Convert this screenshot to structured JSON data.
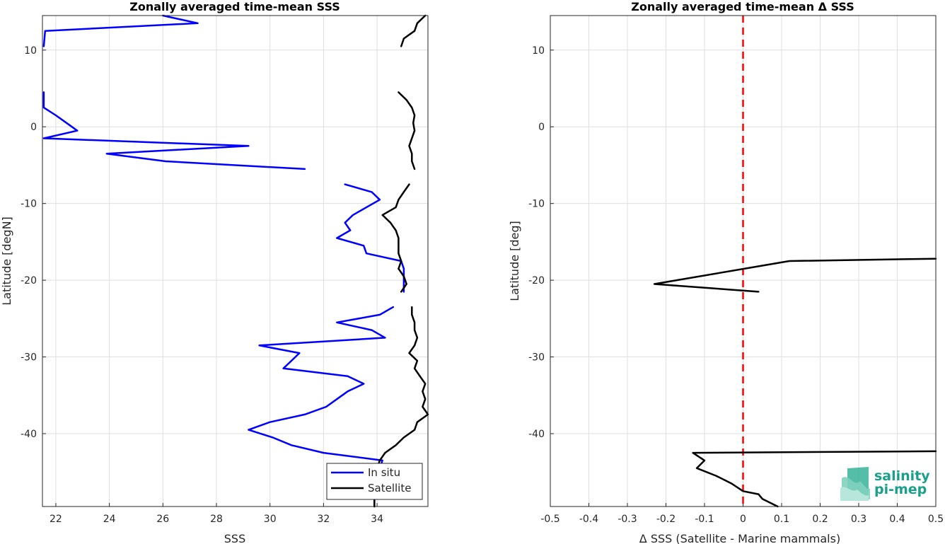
{
  "chart_data": [
    {
      "type": "line",
      "title": "Zonally averaged time-mean SSS",
      "xlabel": "SSS",
      "ylabel": "Latitude [degN]",
      "xlim": [
        21.5,
        35.9
      ],
      "ylim": [
        -49.5,
        14.5
      ],
      "xticks": [
        22,
        24,
        26,
        28,
        30,
        32,
        34
      ],
      "yticks": [
        10,
        0,
        -10,
        -20,
        -30,
        -40
      ],
      "grid": true,
      "legend_position": "bottom-right",
      "series": [
        {
          "name": "In situ",
          "color": "#0000ff",
          "segments": [
            [
              [
                26.0,
                14.5
              ],
              [
                27.3,
                13.5
              ],
              [
                21.6,
                12.5
              ],
              [
                21.55,
                10.5
              ]
            ],
            [
              [
                21.55,
                4.5
              ],
              [
                21.55,
                2.5
              ],
              [
                22.0,
                1.5
              ],
              [
                22.4,
                0.5
              ],
              [
                22.8,
                -0.5
              ],
              [
                21.55,
                -1.5
              ],
              [
                29.2,
                -2.5
              ],
              [
                23.9,
                -3.5
              ],
              [
                26.1,
                -4.5
              ],
              [
                31.3,
                -5.5
              ]
            ],
            [
              [
                32.8,
                -7.5
              ],
              [
                33.8,
                -8.5
              ],
              [
                34.1,
                -9.5
              ],
              [
                33.6,
                -10.5
              ],
              [
                33.1,
                -11.5
              ],
              [
                32.8,
                -12.5
              ],
              [
                33.0,
                -13.5
              ],
              [
                32.5,
                -14.5
              ],
              [
                33.5,
                -15.5
              ],
              [
                33.6,
                -16.5
              ],
              [
                34.9,
                -17.5
              ],
              [
                35.0,
                -18.5
              ],
              [
                35.0,
                -19.5
              ],
              [
                35.0,
                -20.5
              ],
              [
                35.0,
                -21.5
              ]
            ],
            [
              [
                34.6,
                -23.5
              ],
              [
                34.1,
                -24.5
              ],
              [
                32.5,
                -25.5
              ],
              [
                33.8,
                -26.5
              ],
              [
                34.3,
                -27.5
              ],
              [
                29.6,
                -28.5
              ],
              [
                31.1,
                -29.5
              ],
              [
                30.8,
                -30.5
              ],
              [
                30.5,
                -31.5
              ],
              [
                32.9,
                -32.5
              ],
              [
                33.5,
                -33.5
              ],
              [
                32.9,
                -34.5
              ],
              [
                32.5,
                -35.5
              ],
              [
                32.1,
                -36.5
              ],
              [
                31.3,
                -37.5
              ],
              [
                30.0,
                -38.5
              ],
              [
                29.2,
                -39.5
              ],
              [
                30.1,
                -40.5
              ],
              [
                30.8,
                -41.5
              ],
              [
                32.0,
                -42.5
              ],
              [
                34.2,
                -43.5
              ],
              [
                34.1,
                -44.5
              ],
              [
                34.0,
                -45.5
              ],
              [
                34.0,
                -46.5
              ],
              [
                33.9,
                -47.5
              ],
              [
                33.9,
                -48.5
              ],
              [
                33.9,
                -49.5
              ]
            ]
          ]
        },
        {
          "name": "Satellite",
          "color": "#000000",
          "segments": [
            [
              [
                35.8,
                14.5
              ],
              [
                35.5,
                13.5
              ],
              [
                35.4,
                12.5
              ],
              [
                35.0,
                11.5
              ],
              [
                34.9,
                10.5
              ]
            ],
            [
              [
                34.8,
                4.5
              ],
              [
                35.1,
                3.5
              ],
              [
                35.3,
                2.5
              ],
              [
                35.4,
                1.5
              ],
              [
                35.35,
                0.5
              ],
              [
                35.4,
                -0.5
              ],
              [
                35.3,
                -1.5
              ],
              [
                35.2,
                -2.5
              ],
              [
                35.3,
                -3.5
              ],
              [
                35.3,
                -4.5
              ],
              [
                35.4,
                -5.5
              ]
            ],
            [
              [
                35.2,
                -7.5
              ],
              [
                35.0,
                -8.5
              ],
              [
                34.8,
                -9.5
              ],
              [
                34.7,
                -10.5
              ],
              [
                34.2,
                -11.5
              ],
              [
                34.5,
                -12.5
              ],
              [
                34.7,
                -13.5
              ],
              [
                34.8,
                -14.5
              ],
              [
                34.8,
                -15.5
              ],
              [
                34.8,
                -16.5
              ],
              [
                34.9,
                -17.5
              ],
              [
                34.8,
                -18.5
              ],
              [
                35.0,
                -19.5
              ],
              [
                35.1,
                -20.5
              ],
              [
                34.9,
                -21.5
              ]
            ],
            [
              [
                35.3,
                -23.5
              ],
              [
                35.3,
                -24.5
              ],
              [
                35.4,
                -25.5
              ],
              [
                35.4,
                -26.5
              ],
              [
                35.5,
                -27.5
              ],
              [
                35.4,
                -28.5
              ],
              [
                35.2,
                -29.5
              ],
              [
                35.5,
                -30.5
              ],
              [
                35.4,
                -31.5
              ],
              [
                35.6,
                -32.5
              ],
              [
                35.8,
                -33.5
              ],
              [
                35.7,
                -34.5
              ],
              [
                35.8,
                -35.5
              ],
              [
                35.7,
                -36.5
              ],
              [
                35.9,
                -37.5
              ],
              [
                35.5,
                -38.5
              ],
              [
                35.4,
                -39.5
              ],
              [
                35.0,
                -40.5
              ],
              [
                34.7,
                -41.5
              ],
              [
                34.3,
                -42.5
              ],
              [
                34.1,
                -43.5
              ],
              [
                34.0,
                -44.5
              ],
              [
                34.0,
                -45.5
              ],
              [
                33.95,
                -46.5
              ],
              [
                33.9,
                -47.5
              ],
              [
                33.9,
                -48.5
              ],
              [
                33.9,
                -49.5
              ]
            ]
          ]
        }
      ]
    },
    {
      "type": "line",
      "title": "Zonally averaged time-mean Δ SSS",
      "xlabel": "Δ SSS (Satellite - Marine mammals)",
      "ylabel": "Latitude [deg]",
      "xlim": [
        -0.5,
        0.5
      ],
      "ylim": [
        -49.5,
        14.5
      ],
      "xticks": [
        -0.5,
        -0.4,
        -0.3,
        -0.2,
        -0.1,
        0,
        0.1,
        0.2,
        0.3,
        0.4,
        0.5
      ],
      "xtick_labels": [
        "-0.5",
        "-0.4",
        "-0.3",
        "-0.2",
        "-0.1",
        "0",
        "0.1",
        "0.2",
        "0.3",
        "0.4",
        "0.5"
      ],
      "yticks": [
        10,
        0,
        -10,
        -20,
        -30,
        -40
      ],
      "grid": true,
      "reference_line": {
        "x": 0,
        "color": "#ff0000",
        "style": "dashed"
      },
      "series": [
        {
          "color": "#000000",
          "segments": [
            [
              [
                0.5,
                -17.2
              ],
              [
                0.12,
                -17.5
              ],
              [
                -0.23,
                -20.5
              ],
              [
                0.04,
                -21.5
              ]
            ],
            [
              [
                0.5,
                -42.3
              ],
              [
                -0.13,
                -42.5
              ],
              [
                -0.1,
                -43.5
              ],
              [
                -0.12,
                -44.5
              ],
              [
                -0.07,
                -45.5
              ],
              [
                -0.03,
                -46.5
              ],
              [
                0.0,
                -47.5
              ],
              [
                0.04,
                -47.9
              ],
              [
                0.05,
                -48.5
              ],
              [
                0.09,
                -49.5
              ]
            ]
          ]
        }
      ]
    }
  ],
  "legend": {
    "items": [
      {
        "label": "In situ",
        "color": "#0000ff"
      },
      {
        "label": "Satellite",
        "color": "#000000"
      }
    ]
  },
  "logo": {
    "line1": "salinity",
    "line2": "pi-mep",
    "color": "#1aa08a"
  }
}
